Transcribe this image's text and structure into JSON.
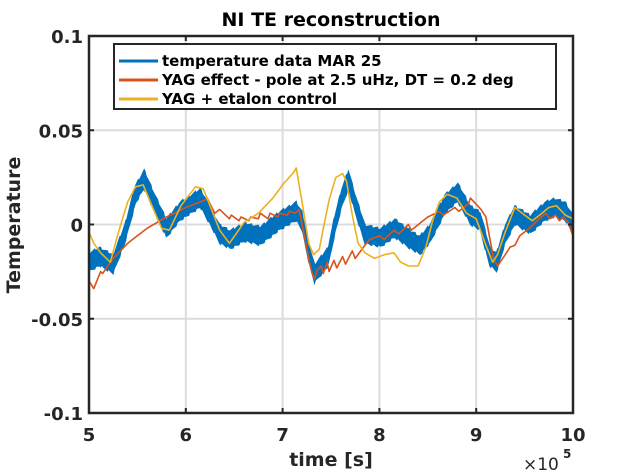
{
  "chart_data": {
    "type": "line",
    "title": "NI TE reconstruction",
    "xlabel": "time [s]",
    "ylabel": "Temperature",
    "x_exponent_label": "×10",
    "x_exponent_power": "5",
    "xlim": [
      5,
      10
    ],
    "ylim": [
      -0.1,
      0.1
    ],
    "xticks": [
      5,
      6,
      7,
      8,
      9,
      10
    ],
    "xtick_labels": [
      "5",
      "6",
      "7",
      "8",
      "9",
      "10"
    ],
    "yticks": [
      0.1,
      0.05,
      0,
      -0.05,
      -0.1
    ],
    "ytick_labels": [
      "0.1",
      "0.05",
      "0",
      "-0.05",
      "-0.1"
    ],
    "grid": true,
    "legend_position": "top",
    "series": [
      {
        "name": "temperature data MAR 25",
        "color": "#0072BD",
        "band": 0.004,
        "x": [
          5.0,
          5.11,
          5.25,
          5.37,
          5.48,
          5.57,
          5.68,
          5.8,
          5.94,
          6.15,
          6.25,
          6.35,
          6.46,
          6.61,
          6.77,
          6.97,
          7.14,
          7.2,
          7.28,
          7.33,
          7.41,
          7.47,
          7.54,
          7.61,
          7.68,
          7.75,
          7.85,
          8.01,
          8.16,
          8.32,
          8.42,
          8.52,
          8.68,
          8.81,
          8.94,
          9.04,
          9.14,
          9.21,
          9.3,
          9.4,
          9.56,
          9.71,
          9.81,
          9.92,
          10.0
        ],
        "y": [
          -0.02,
          -0.017,
          -0.021,
          -0.005,
          0.016,
          0.024,
          0.011,
          -0.002,
          0.007,
          0.014,
          0.005,
          -0.005,
          -0.008,
          -0.004,
          -0.006,
          0.002,
          0.007,
          0.002,
          -0.017,
          -0.026,
          -0.021,
          -0.017,
          0.0,
          0.014,
          0.024,
          0.011,
          -0.005,
          -0.007,
          -0.002,
          -0.008,
          -0.011,
          -0.005,
          0.011,
          0.017,
          0.005,
          0.002,
          -0.017,
          -0.02,
          -0.005,
          0.005,
          0.0,
          0.007,
          0.009,
          0.007,
          0.0
        ]
      },
      {
        "name": "YAG effect - pole at 2.5 uHz, DT = 0.2 deg",
        "color": "#D95319",
        "x": [
          5.0,
          5.05,
          5.12,
          5.14,
          5.25,
          5.4,
          5.6,
          5.8,
          6.0,
          6.2,
          6.22,
          6.3,
          6.35,
          6.45,
          6.47,
          6.55,
          6.57,
          6.65,
          6.67,
          6.75,
          6.77,
          6.85,
          6.87,
          6.95,
          6.97,
          7.05,
          7.07,
          7.13,
          7.17,
          7.27,
          7.3,
          7.33,
          7.36,
          7.4,
          7.42,
          7.46,
          7.48,
          7.53,
          7.56,
          7.62,
          7.65,
          7.72,
          7.75,
          7.85,
          7.9,
          8.0,
          8.05,
          8.15,
          8.2,
          8.3,
          8.33,
          8.45,
          8.5,
          8.62,
          8.66,
          8.78,
          8.82,
          8.92,
          8.94,
          9.05,
          9.1,
          9.15,
          9.18,
          9.22,
          9.3,
          9.35,
          9.4,
          9.45,
          9.55,
          9.65,
          9.72,
          9.76,
          9.82,
          9.86,
          9.9,
          9.95,
          10.0
        ],
        "y": [
          -0.03,
          -0.034,
          -0.025,
          -0.026,
          -0.018,
          -0.01,
          -0.002,
          0.004,
          0.009,
          0.013,
          0.014,
          0.006,
          0.008,
          0.003,
          0.005,
          0.002,
          0.004,
          0.002,
          0.004,
          0.003,
          0.006,
          0.003,
          0.006,
          0.004,
          0.006,
          0.005,
          0.007,
          0.006,
          0.008,
          -0.018,
          -0.025,
          -0.029,
          -0.024,
          -0.022,
          -0.026,
          -0.02,
          -0.025,
          -0.019,
          -0.023,
          -0.017,
          -0.021,
          -0.014,
          -0.018,
          -0.011,
          -0.008,
          -0.006,
          -0.008,
          -0.003,
          -0.005,
          0.0,
          -0.003,
          0.002,
          0.004,
          0.007,
          0.005,
          0.009,
          0.007,
          0.011,
          0.014,
          0.008,
          0.004,
          -0.01,
          -0.018,
          -0.022,
          -0.016,
          -0.012,
          -0.011,
          -0.006,
          -0.002,
          0.003,
          0.006,
          0.003,
          0.005,
          0.002,
          0.004,
          0.001,
          -0.006
        ]
      },
      {
        "name": "YAG + etalon control",
        "color": "#EDB120",
        "x": [
          5.0,
          5.05,
          5.12,
          5.22,
          5.3,
          5.4,
          5.48,
          5.56,
          5.65,
          5.75,
          5.83,
          5.95,
          6.1,
          6.18,
          6.25,
          6.35,
          6.45,
          6.52,
          6.6,
          6.75,
          6.9,
          7.0,
          7.12,
          7.14,
          7.2,
          7.27,
          7.32,
          7.38,
          7.42,
          7.48,
          7.55,
          7.62,
          7.66,
          7.72,
          7.78,
          7.85,
          7.95,
          8.05,
          8.15,
          8.22,
          8.3,
          8.4,
          8.48,
          8.55,
          8.62,
          8.7,
          8.8,
          8.9,
          9.0,
          9.1,
          9.17,
          9.22,
          9.3,
          9.4,
          9.5,
          9.58,
          9.68,
          9.75,
          9.83,
          9.92,
          10.0
        ],
        "y": [
          -0.004,
          -0.01,
          -0.015,
          -0.02,
          -0.005,
          0.012,
          0.02,
          0.021,
          0.01,
          -0.002,
          -0.003,
          0.01,
          0.02,
          0.019,
          0.01,
          -0.003,
          -0.01,
          -0.005,
          0.001,
          0.006,
          0.014,
          0.021,
          0.028,
          0.03,
          0.012,
          -0.01,
          -0.016,
          -0.013,
          -0.002,
          0.013,
          0.025,
          0.027,
          0.023,
          0.005,
          -0.01,
          -0.015,
          -0.018,
          -0.016,
          -0.015,
          -0.02,
          -0.022,
          -0.022,
          -0.012,
          0.002,
          0.012,
          0.016,
          0.014,
          0.006,
          0.003,
          -0.011,
          -0.02,
          -0.016,
          -0.004,
          0.009,
          0.005,
          0.002,
          0.006,
          0.009,
          0.01,
          0.005,
          0.003
        ]
      }
    ]
  }
}
